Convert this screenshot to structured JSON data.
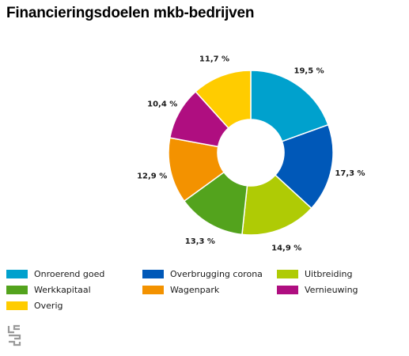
{
  "chart_data": {
    "type": "donut",
    "title": "Financieringsdoelen mkb-bedrijven",
    "unit": "%",
    "slices": [
      {
        "name": "Onroerend goed",
        "value": 19.5,
        "label": "19,5 %",
        "color": "#00a1cd"
      },
      {
        "name": "Overbrugging corona",
        "value": 17.3,
        "label": "17,3 %",
        "color": "#0058b8"
      },
      {
        "name": "Uitbreiding",
        "value": 14.9,
        "label": "14,9 %",
        "color": "#afcb05"
      },
      {
        "name": "Werkkapitaal",
        "value": 13.3,
        "label": "13,3 %",
        "color": "#53a31d"
      },
      {
        "name": "Wagenpark",
        "value": 12.9,
        "label": "12,9 %",
        "color": "#f39200"
      },
      {
        "name": "Vernieuwing",
        "value": 10.4,
        "label": "10,4 %",
        "color": "#af0e80"
      },
      {
        "name": "Overig",
        "value": 11.7,
        "label": "11,7 %",
        "color": "#ffcc00"
      }
    ],
    "legend_placement": "bottom",
    "legend_order": [
      "Onroerend goed",
      "Overbrugging corona",
      "Uitbreiding",
      "Werkkapitaal",
      "Wagenpark",
      "Vernieuwing",
      "Overig"
    ]
  },
  "logo": {
    "icon": "cbs-logo-icon",
    "color": "#9a9a9a"
  }
}
